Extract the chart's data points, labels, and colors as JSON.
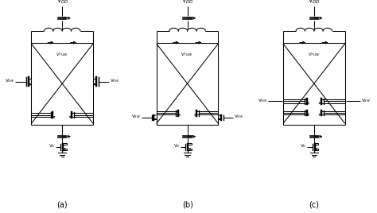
{
  "figure_width": 4.74,
  "figure_height": 2.68,
  "dpi": 100,
  "bg_color": "#ffffff",
  "line_color": "black",
  "lw": 0.75,
  "labels": {
    "vdd": "V$_{DD}$",
    "vtune": "V$_{TUNE}$",
    "vsw_l": "V$_{SW}$",
    "vsw_r": "V$_{SW}$",
    "vg": "V$_{G}$"
  },
  "subfig_labels": [
    "(a)",
    "(b)",
    "(c)"
  ],
  "subfig_centers": [
    0.165,
    0.497,
    0.833
  ]
}
